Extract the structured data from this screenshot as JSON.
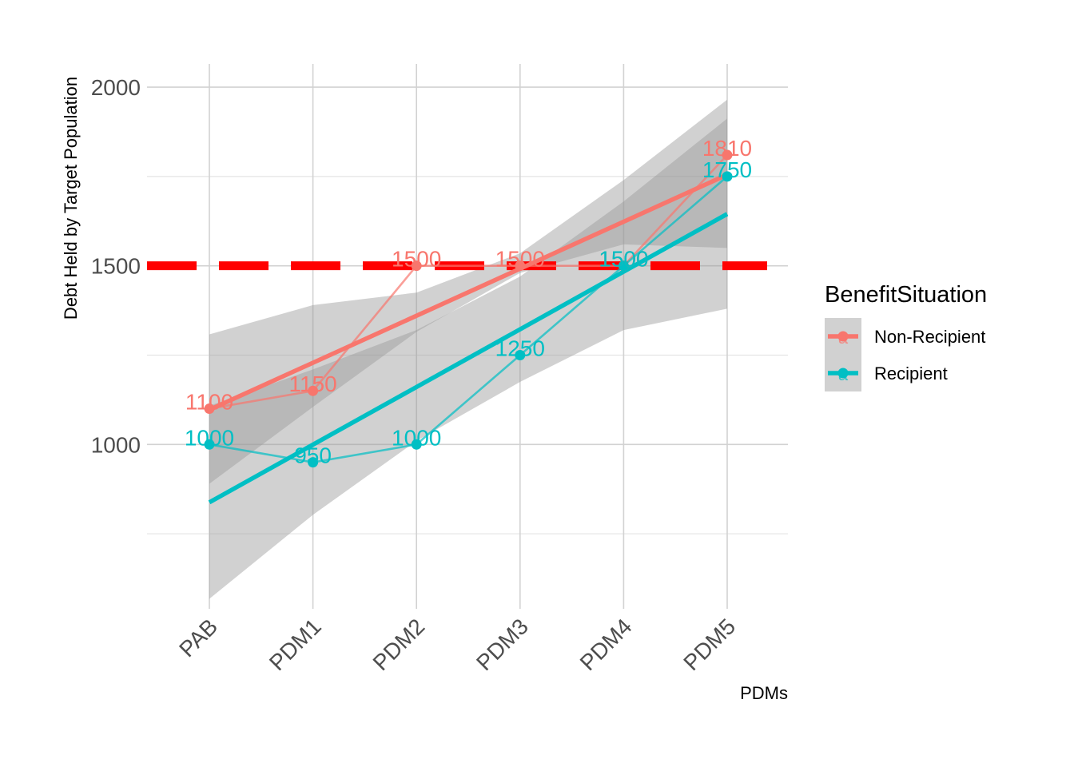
{
  "chart_data": {
    "type": "line",
    "title": "",
    "xlabel": "PDMs",
    "ylabel": "Debt Held by Target Population",
    "categories": [
      "PAB",
      "PDM1",
      "PDM2",
      "PDM3",
      "PDM4",
      "PDM5"
    ],
    "ylim": [
      540,
      2065
    ],
    "yticks": [
      1000,
      1500,
      2000
    ],
    "grid": true,
    "reference_line": {
      "y": 1500,
      "color": "#ff0000",
      "style": "dashed"
    },
    "series": [
      {
        "name": "Non-Recipient",
        "color": "#f8766d",
        "values": [
          1100,
          1150,
          1500,
          1500,
          1500,
          1810
        ],
        "fit": {
          "start": 1097,
          "end": 1755
        },
        "ci_band": {
          "lower": [
            890,
            1105,
            1315,
            1480,
            1560,
            1550
          ],
          "upper": [
            1308,
            1390,
            1425,
            1535,
            1740,
            1965
          ]
        }
      },
      {
        "name": "Recipient",
        "color": "#00bfc4",
        "values": [
          1000,
          950,
          1000,
          1250,
          1500,
          1750
        ],
        "fit": {
          "start": 838,
          "end": 1645
        },
        "ci_band": {
          "lower": [
            568,
            803,
            1010,
            1175,
            1320,
            1380
          ],
          "upper": [
            1108,
            1210,
            1320,
            1470,
            1680,
            1912
          ]
        }
      }
    ],
    "legend": {
      "title": "BenefitSituation",
      "position": "right",
      "entries": [
        "Non-Recipient",
        "Recipient"
      ],
      "key_glyph": "a"
    }
  }
}
